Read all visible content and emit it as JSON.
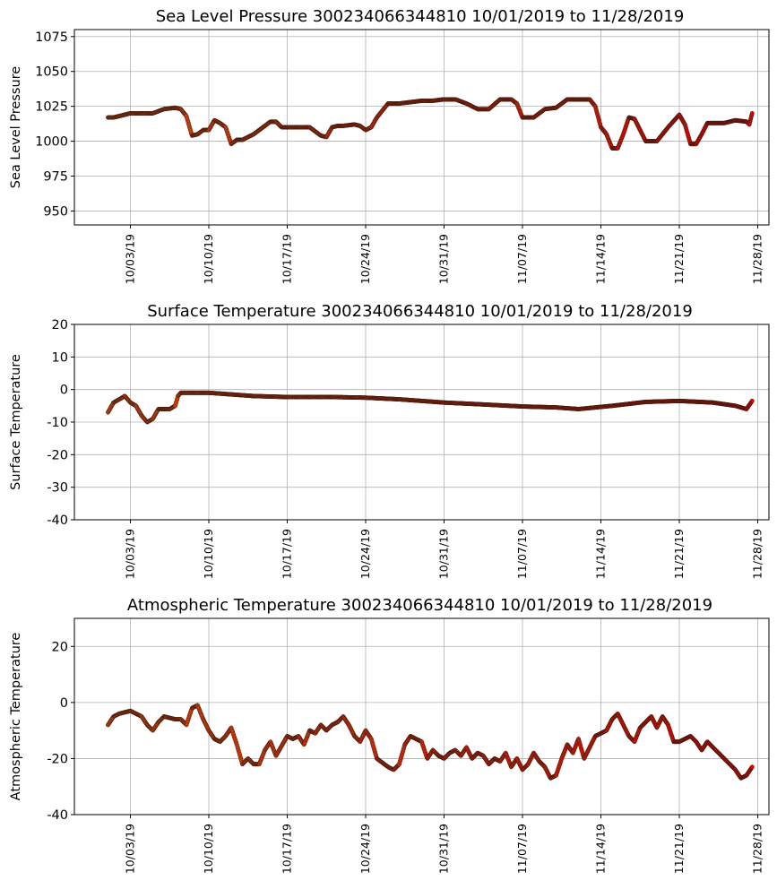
{
  "chart_data": [
    {
      "type": "scatter",
      "title": "Sea Level Pressure 300234066344810  10/01/2019 to 11/28/2019",
      "ylabel": "Sea Level Pressure",
      "ylim": [
        940,
        1080
      ],
      "yticks": [
        950,
        975,
        1000,
        1025,
        1050,
        1075
      ],
      "xlim": [
        "2019-09-28",
        "2019-11-29"
      ],
      "xticks": [
        "10/03/19",
        "10/10/19",
        "10/17/19",
        "10/24/19",
        "10/31/19",
        "11/07/19",
        "11/14/19",
        "11/21/19",
        "11/28/19"
      ],
      "grid": true,
      "color_gradient": [
        "#e8500c",
        "#e50000"
      ],
      "series": [
        {
          "x": [
            "2019-10-01T00:00",
            "2019-10-01T12:00",
            "2019-10-02T00:00",
            "2019-10-03T00:00",
            "2019-10-03T12:00",
            "2019-10-04T00:00",
            "2019-10-05T00:00",
            "2019-10-06T00:00",
            "2019-10-07T00:00",
            "2019-10-07T12:00",
            "2019-10-08T00:00",
            "2019-10-08T12:00",
            "2019-10-09T00:00",
            "2019-10-09T12:00",
            "2019-10-10T00:00",
            "2019-10-10T12:00",
            "2019-10-11T00:00",
            "2019-10-11T12:00",
            "2019-10-12T00:00",
            "2019-10-12T12:00",
            "2019-10-13T00:00",
            "2019-10-14T00:00",
            "2019-10-15T00:00",
            "2019-10-15T12:00",
            "2019-10-16T00:00",
            "2019-10-16T12:00",
            "2019-10-17T00:00",
            "2019-10-18T00:00",
            "2019-10-19T00:00",
            "2019-10-20T00:00",
            "2019-10-20T12:00",
            "2019-10-21T00:00",
            "2019-10-21T12:00",
            "2019-10-22T00:00",
            "2019-10-23T00:00",
            "2019-10-23T12:00",
            "2019-10-24T00:00",
            "2019-10-24T12:00",
            "2019-10-25T00:00",
            "2019-10-26T00:00",
            "2019-10-27T00:00",
            "2019-10-28T00:00",
            "2019-10-29T00:00",
            "2019-10-30T00:00",
            "2019-10-31T00:00",
            "2019-11-01T00:00",
            "2019-11-02T00:00",
            "2019-11-03T00:00",
            "2019-11-04T00:00",
            "2019-11-05T00:00",
            "2019-11-06T00:00",
            "2019-11-06T12:00",
            "2019-11-07T00:00",
            "2019-11-08T00:00",
            "2019-11-08T12:00",
            "2019-11-09T00:00",
            "2019-11-10T00:00",
            "2019-11-11T00:00",
            "2019-11-12T00:00",
            "2019-11-13T00:00",
            "2019-11-13T12:00",
            "2019-11-14T00:00",
            "2019-11-14T12:00",
            "2019-11-15T00:00",
            "2019-11-15T12:00",
            "2019-11-16T00:00",
            "2019-11-16T12:00",
            "2019-11-17T00:00",
            "2019-11-18T00:00",
            "2019-11-19T00:00",
            "2019-11-20T00:00",
            "2019-11-21T00:00",
            "2019-11-21T12:00",
            "2019-11-22T00:00",
            "2019-11-22T12:00",
            "2019-11-23T00:00",
            "2019-11-23T12:00",
            "2019-11-24T00:00",
            "2019-11-25T00:00",
            "2019-11-26T00:00",
            "2019-11-27T00:00",
            "2019-11-27T06:00",
            "2019-11-27T12:00"
          ],
          "y": [
            1017,
            1017,
            1018,
            1020,
            1020,
            1020,
            1020,
            1023,
            1024,
            1023,
            1018,
            1004,
            1005,
            1008,
            1008,
            1015,
            1013,
            1010,
            998,
            1001,
            1001,
            1005,
            1011,
            1014,
            1014,
            1010,
            1010,
            1010,
            1010,
            1004,
            1003,
            1010,
            1011,
            1011,
            1012,
            1011,
            1008,
            1010,
            1017,
            1027,
            1027,
            1028,
            1029,
            1029,
            1030,
            1030,
            1027,
            1023,
            1023,
            1030,
            1030,
            1027,
            1017,
            1017,
            1020,
            1023,
            1024,
            1030,
            1030,
            1030,
            1025,
            1010,
            1005,
            995,
            995,
            1005,
            1017,
            1016,
            1000,
            1000,
            1010,
            1019,
            1012,
            998,
            998,
            1005,
            1013,
            1013,
            1013,
            1015,
            1014,
            1012,
            1020
          ]
        }
      ]
    },
    {
      "type": "scatter",
      "title": "Surface Temperature 300234066344810  10/01/2019 to 11/28/2019",
      "ylabel": "Surface Temperature",
      "ylim": [
        -40,
        20
      ],
      "yticks": [
        -40,
        -30,
        -20,
        -10,
        0,
        10,
        20
      ],
      "xlim": [
        "2019-09-28",
        "2019-11-29"
      ],
      "xticks": [
        "10/03/19",
        "10/10/19",
        "10/17/19",
        "10/24/19",
        "10/31/19",
        "11/07/19",
        "11/14/19",
        "11/21/19",
        "11/28/19"
      ],
      "grid": true,
      "color_gradient": [
        "#e8500c",
        "#e50000"
      ],
      "series": [
        {
          "x": [
            "2019-10-01T00:00",
            "2019-10-01T12:00",
            "2019-10-02T00:00",
            "2019-10-02T12:00",
            "2019-10-03T00:00",
            "2019-10-03T12:00",
            "2019-10-04T00:00",
            "2019-10-04T12:00",
            "2019-10-05T00:00",
            "2019-10-05T12:00",
            "2019-10-06T00:00",
            "2019-10-06T12:00",
            "2019-10-07T00:00",
            "2019-10-07T06:00",
            "2019-10-07T12:00",
            "2019-10-08T00:00",
            "2019-10-09T00:00",
            "2019-10-10T00:00",
            "2019-10-12T00:00",
            "2019-10-14T00:00",
            "2019-10-17T00:00",
            "2019-10-21T00:00",
            "2019-10-24T00:00",
            "2019-10-27T00:00",
            "2019-10-31T00:00",
            "2019-11-03T00:00",
            "2019-11-07T00:00",
            "2019-11-10T00:00",
            "2019-11-12T00:00",
            "2019-11-15T00:00",
            "2019-11-18T00:00",
            "2019-11-21T00:00",
            "2019-11-24T00:00",
            "2019-11-26T00:00",
            "2019-11-27T00:00",
            "2019-11-27T12:00"
          ],
          "y": [
            -7,
            -4,
            -3,
            -2,
            -4,
            -5,
            -8,
            -10,
            -9,
            -6,
            -6,
            -6,
            -5,
            -2,
            -1,
            -1,
            -1,
            -1,
            -1.5,
            -2,
            -2.3,
            -2.3,
            -2.5,
            -3,
            -4,
            -4.5,
            -5.2,
            -5.5,
            -6,
            -5,
            -3.8,
            -3.5,
            -4,
            -5,
            -6,
            -3.5
          ]
        }
      ]
    },
    {
      "type": "scatter",
      "title": "Atmospheric Temperature 300234066344810  10/01/2019 to 11/28/2019",
      "ylabel": "Atmospheric Temperature",
      "ylim": [
        -40,
        30
      ],
      "yticks": [
        -40,
        -20,
        0,
        20
      ],
      "xlim": [
        "2019-09-28",
        "2019-11-29"
      ],
      "xticks": [
        "10/03/19",
        "10/10/19",
        "10/17/19",
        "10/24/19",
        "10/31/19",
        "11/07/19",
        "11/14/19",
        "11/21/19",
        "11/28/19"
      ],
      "grid": true,
      "color_gradient": [
        "#e8500c",
        "#e50000"
      ],
      "series": [
        {
          "x": [
            "2019-10-01T00:00",
            "2019-10-01T12:00",
            "2019-10-02T00:00",
            "2019-10-03T00:00",
            "2019-10-03T12:00",
            "2019-10-04T00:00",
            "2019-10-04T12:00",
            "2019-10-05T00:00",
            "2019-10-05T12:00",
            "2019-10-06T00:00",
            "2019-10-07T00:00",
            "2019-10-07T12:00",
            "2019-10-08T00:00",
            "2019-10-08T12:00",
            "2019-10-09T00:00",
            "2019-10-09T12:00",
            "2019-10-10T00:00",
            "2019-10-10T12:00",
            "2019-10-11T00:00",
            "2019-10-11T12:00",
            "2019-10-12T00:00",
            "2019-10-12T12:00",
            "2019-10-13T00:00",
            "2019-10-13T12:00",
            "2019-10-14T00:00",
            "2019-10-14T12:00",
            "2019-10-15T00:00",
            "2019-10-15T12:00",
            "2019-10-16T00:00",
            "2019-10-17T00:00",
            "2019-10-17T12:00",
            "2019-10-18T00:00",
            "2019-10-18T12:00",
            "2019-10-19T00:00",
            "2019-10-19T12:00",
            "2019-10-20T00:00",
            "2019-10-20T12:00",
            "2019-10-21T00:00",
            "2019-10-21T12:00",
            "2019-10-22T00:00",
            "2019-10-22T12:00",
            "2019-10-23T00:00",
            "2019-10-23T12:00",
            "2019-10-24T00:00",
            "2019-10-24T12:00",
            "2019-10-25T00:00",
            "2019-10-26T00:00",
            "2019-10-26T12:00",
            "2019-10-27T00:00",
            "2019-10-27T12:00",
            "2019-10-28T00:00",
            "2019-10-29T00:00",
            "2019-10-29T12:00",
            "2019-10-30T00:00",
            "2019-10-30T12:00",
            "2019-10-31T00:00",
            "2019-10-31T12:00",
            "2019-11-01T00:00",
            "2019-11-01T12:00",
            "2019-11-02T00:00",
            "2019-11-02T12:00",
            "2019-11-03T00:00",
            "2019-11-03T12:00",
            "2019-11-04T00:00",
            "2019-11-04T12:00",
            "2019-11-05T00:00",
            "2019-11-05T12:00",
            "2019-11-06T00:00",
            "2019-11-06T12:00",
            "2019-11-07T00:00",
            "2019-11-07T12:00",
            "2019-11-08T00:00",
            "2019-11-08T12:00",
            "2019-11-09T00:00",
            "2019-11-09T12:00",
            "2019-11-10T00:00",
            "2019-11-10T12:00",
            "2019-11-11T00:00",
            "2019-11-11T12:00",
            "2019-11-12T00:00",
            "2019-11-12T12:00",
            "2019-11-13T00:00",
            "2019-11-13T12:00",
            "2019-11-14T00:00",
            "2019-11-14T12:00",
            "2019-11-15T00:00",
            "2019-11-15T12:00",
            "2019-11-16T00:00",
            "2019-11-16T12:00",
            "2019-11-17T00:00",
            "2019-11-17T12:00",
            "2019-11-18T00:00",
            "2019-11-18T12:00",
            "2019-11-19T00:00",
            "2019-11-19T12:00",
            "2019-11-20T00:00",
            "2019-11-20T12:00",
            "2019-11-21T00:00",
            "2019-11-21T12:00",
            "2019-11-22T00:00",
            "2019-11-22T12:00",
            "2019-11-23T00:00",
            "2019-11-23T12:00",
            "2019-11-24T00:00",
            "2019-11-24T12:00",
            "2019-11-25T00:00",
            "2019-11-25T12:00",
            "2019-11-26T00:00",
            "2019-11-26T12:00",
            "2019-11-27T00:00",
            "2019-11-27T12:00"
          ],
          "y": [
            -8,
            -5,
            -4,
            -3,
            -4,
            -5,
            -8,
            -10,
            -7,
            -5,
            -6,
            -6,
            -8,
            -2,
            -1,
            -6,
            -10,
            -13,
            -14,
            -12,
            -9,
            -15,
            -22,
            -20,
            -22,
            -22,
            -17,
            -14,
            -19,
            -12,
            -13,
            -12,
            -15,
            -10,
            -11,
            -8,
            -10,
            -8,
            -7,
            -5,
            -8,
            -12,
            -14,
            -10,
            -13,
            -20,
            -23,
            -24,
            -22,
            -15,
            -12,
            -14,
            -20,
            -17,
            -19,
            -20,
            -18,
            -17,
            -19,
            -16,
            -20,
            -18,
            -19,
            -22,
            -20,
            -21,
            -18,
            -23,
            -20,
            -24,
            -22,
            -18,
            -21,
            -23,
            -27,
            -26,
            -20,
            -15,
            -18,
            -13,
            -20,
            -16,
            -12,
            -11,
            -10,
            -6,
            -4,
            -8,
            -12,
            -14,
            -9,
            -7,
            -5,
            -9,
            -5,
            -8,
            -14,
            -14,
            -13,
            -12,
            -14,
            -17,
            -14,
            -16,
            -18,
            -20,
            -22,
            -24,
            -27,
            -26,
            -23
          ]
        }
      ]
    }
  ]
}
